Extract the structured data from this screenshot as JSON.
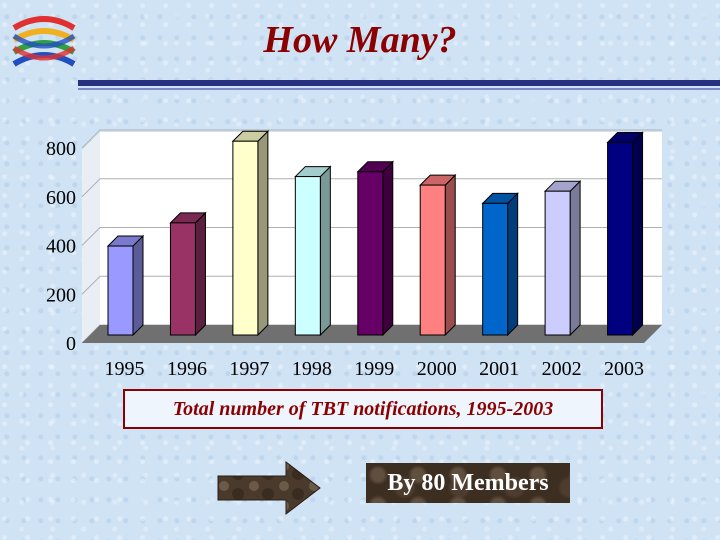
{
  "slide": {
    "title": "How Many?",
    "caption": "Total number of TBT notifications, 1995-2003",
    "members_label": "By 80 Members"
  },
  "logo": {
    "icon": "wto-logo-icon",
    "colors": [
      "#e03030",
      "#f0b020",
      "#30a040",
      "#2050c0"
    ]
  },
  "colors": {
    "rule": "#28317f",
    "title": "#8b0000",
    "floor": "#707070"
  },
  "chart_data": {
    "type": "bar",
    "title": "",
    "xlabel": "",
    "ylabel": "",
    "categories": [
      "1995",
      "1996",
      "1997",
      "1998",
      "1999",
      "2000",
      "2001",
      "2002",
      "2003"
    ],
    "values": [
      365,
      460,
      795,
      650,
      670,
      615,
      540,
      590,
      790
    ],
    "bar_colors": [
      "#9999ff",
      "#993366",
      "#ffffcc",
      "#ccffff",
      "#660066",
      "#ff8080",
      "#0066cc",
      "#ccccff",
      "#000080"
    ],
    "ylim": [
      0,
      800
    ],
    "yticks": [
      0,
      200,
      400,
      600,
      800
    ],
    "grid": true,
    "legend": "none"
  }
}
